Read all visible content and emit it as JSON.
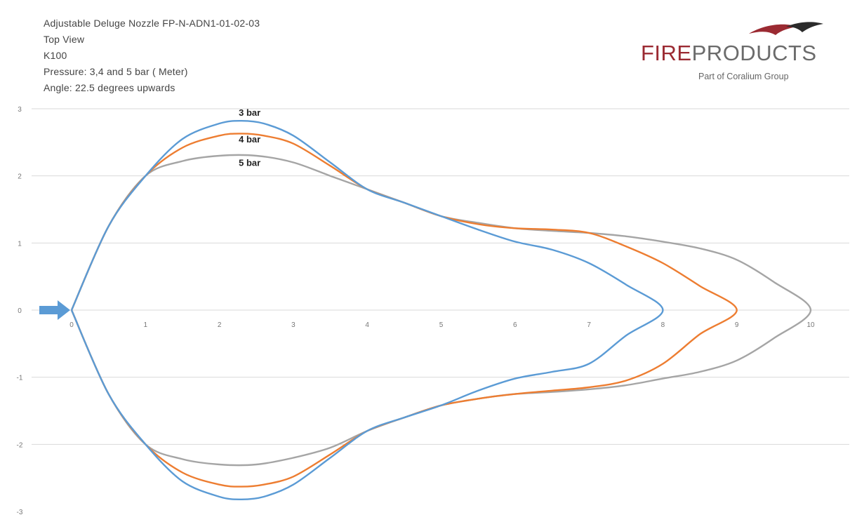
{
  "header": {
    "lines": [
      "Adjustable Deluge Nozzle FP-N-ADN1-01-02-03",
      "Top View",
      "K100",
      "Pressure: 3,4 and 5 bar ( Meter)",
      "Angle: 22.5 degrees upwards"
    ]
  },
  "logo": {
    "brand_part1": "FIRE",
    "brand_part2": "PRODUCTS",
    "tagline": "Part of Coralium Group",
    "colors": {
      "brand_red": "#9b2a32",
      "brand_grey": "#6b6b6b"
    }
  },
  "icons": {
    "arrow": "arrow-right-icon",
    "arrow_color": "#5b9bd5"
  },
  "chart_data": {
    "type": "line",
    "title": "",
    "xlabel": "",
    "ylabel": "",
    "xlim": [
      0,
      10
    ],
    "ylim": [
      -3,
      3
    ],
    "x_ticks": [
      "0",
      "1",
      "2",
      "3",
      "4",
      "5",
      "6",
      "7",
      "8",
      "9",
      "10"
    ],
    "y_ticks": [
      "3",
      "2",
      "1",
      "0",
      "-1",
      "-2",
      "-3"
    ],
    "y_tick_values": [
      3,
      2,
      1,
      0,
      -1,
      -2,
      -3
    ],
    "grid": "horizontal",
    "legend": "none",
    "series": [
      {
        "name": "3 bar",
        "color": "#5b9bd5",
        "points": [
          [
            0,
            0
          ],
          [
            0.5,
            1.25
          ],
          [
            1,
            2.0
          ],
          [
            1.5,
            2.55
          ],
          [
            2,
            2.78
          ],
          [
            2.3,
            2.82
          ],
          [
            2.6,
            2.78
          ],
          [
            3,
            2.6
          ],
          [
            3.5,
            2.2
          ],
          [
            4,
            1.8
          ],
          [
            4.5,
            1.6
          ],
          [
            5,
            1.4
          ],
          [
            5.5,
            1.2
          ],
          [
            6,
            1.02
          ],
          [
            6.5,
            0.9
          ],
          [
            7,
            0.7
          ],
          [
            7.5,
            0.38
          ],
          [
            8,
            0
          ],
          [
            7.5,
            -0.38
          ],
          [
            7,
            -0.8
          ],
          [
            6.5,
            -0.92
          ],
          [
            6,
            -1.02
          ],
          [
            5.5,
            -1.2
          ],
          [
            5,
            -1.42
          ],
          [
            4.5,
            -1.6
          ],
          [
            4,
            -1.8
          ],
          [
            3.5,
            -2.2
          ],
          [
            3,
            -2.6
          ],
          [
            2.6,
            -2.78
          ],
          [
            2.3,
            -2.82
          ],
          [
            2,
            -2.78
          ],
          [
            1.5,
            -2.55
          ],
          [
            1,
            -2.0
          ],
          [
            0.5,
            -1.25
          ],
          [
            0,
            0
          ]
        ]
      },
      {
        "name": "4 bar",
        "color": "#ed7d31",
        "points": [
          [
            0,
            0
          ],
          [
            0.5,
            1.25
          ],
          [
            1,
            2.0
          ],
          [
            1.5,
            2.42
          ],
          [
            2,
            2.6
          ],
          [
            2.3,
            2.63
          ],
          [
            2.6,
            2.6
          ],
          [
            3,
            2.48
          ],
          [
            3.5,
            2.15
          ],
          [
            4,
            1.8
          ],
          [
            4.5,
            1.6
          ],
          [
            5,
            1.4
          ],
          [
            5.5,
            1.28
          ],
          [
            6,
            1.22
          ],
          [
            6.5,
            1.2
          ],
          [
            7,
            1.15
          ],
          [
            7.5,
            0.95
          ],
          [
            8,
            0.7
          ],
          [
            8.5,
            0.36
          ],
          [
            9,
            0
          ],
          [
            8.5,
            -0.36
          ],
          [
            8,
            -0.8
          ],
          [
            7.5,
            -1.05
          ],
          [
            7,
            -1.15
          ],
          [
            6.5,
            -1.2
          ],
          [
            6,
            -1.25
          ],
          [
            5.5,
            -1.32
          ],
          [
            5,
            -1.42
          ],
          [
            4.5,
            -1.6
          ],
          [
            4,
            -1.8
          ],
          [
            3.5,
            -2.15
          ],
          [
            3,
            -2.48
          ],
          [
            2.6,
            -2.6
          ],
          [
            2.3,
            -2.63
          ],
          [
            2,
            -2.6
          ],
          [
            1.5,
            -2.42
          ],
          [
            1,
            -2.0
          ],
          [
            0.5,
            -1.25
          ],
          [
            0,
            0
          ]
        ]
      },
      {
        "name": "5 bar",
        "color": "#a5a5a5",
        "points": [
          [
            0,
            0
          ],
          [
            0.5,
            1.25
          ],
          [
            1,
            2.0
          ],
          [
            1.5,
            2.22
          ],
          [
            2,
            2.3
          ],
          [
            2.5,
            2.3
          ],
          [
            3,
            2.2
          ],
          [
            3.5,
            2.0
          ],
          [
            4,
            1.8
          ],
          [
            4.5,
            1.6
          ],
          [
            5,
            1.4
          ],
          [
            5.5,
            1.3
          ],
          [
            6,
            1.22
          ],
          [
            6.5,
            1.18
          ],
          [
            7,
            1.15
          ],
          [
            7.5,
            1.1
          ],
          [
            8,
            1.02
          ],
          [
            8.5,
            0.92
          ],
          [
            9,
            0.75
          ],
          [
            9.5,
            0.42
          ],
          [
            10,
            0
          ],
          [
            9.5,
            -0.42
          ],
          [
            9,
            -0.75
          ],
          [
            8.5,
            -0.92
          ],
          [
            8,
            -1.02
          ],
          [
            7.5,
            -1.12
          ],
          [
            7,
            -1.18
          ],
          [
            6.5,
            -1.22
          ],
          [
            6,
            -1.25
          ],
          [
            5.5,
            -1.32
          ],
          [
            5,
            -1.42
          ],
          [
            4.5,
            -1.6
          ],
          [
            4,
            -1.8
          ],
          [
            3.5,
            -2.05
          ],
          [
            3,
            -2.2
          ],
          [
            2.5,
            -2.3
          ],
          [
            2,
            -2.3
          ],
          [
            1.5,
            -2.22
          ],
          [
            1,
            -2.0
          ],
          [
            0.5,
            -1.25
          ],
          [
            0,
            0
          ]
        ]
      }
    ],
    "annotations": [
      {
        "text": "3 bar",
        "x": 2.2,
        "y": 2.95
      },
      {
        "text": "4 bar",
        "x": 2.2,
        "y": 2.55
      },
      {
        "text": "5 bar",
        "x": 2.2,
        "y": 2.2
      }
    ]
  }
}
